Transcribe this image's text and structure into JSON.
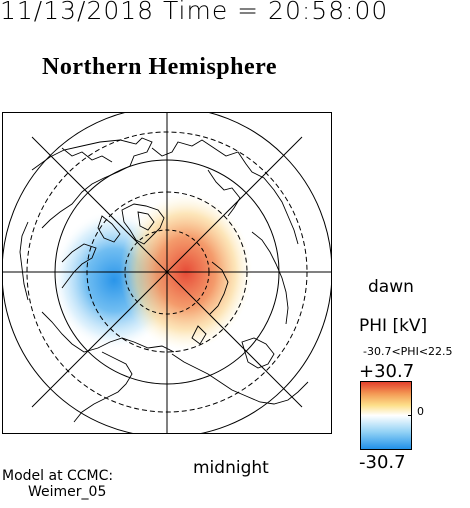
{
  "header": {
    "datetime": "11/13/2018 Time = 20:58:00"
  },
  "map": {
    "title": "Northern Hemisphere",
    "orientation_labels": {
      "right": "dawn",
      "bottom": "midnight"
    },
    "potential_pattern": {
      "positive_cell": "red-center-right",
      "negative_cell": "blue-left"
    },
    "colors": {
      "positive": "#e33d2b",
      "negative": "#1e8fe8",
      "zero": "#ffffff",
      "grid": "#000000"
    }
  },
  "model": {
    "line1": "Model at CCMC:",
    "line2": "Weimer_05"
  },
  "colorbar": {
    "title": "PHI [kV]",
    "range_text": "-30.7<PHI<22.5",
    "max_label": "+30.7",
    "min_label": "-30.7",
    "zero_label": "0",
    "stops": [
      "#1e8fe8",
      "#8fd0f5",
      "#ffffff",
      "#fde08a",
      "#f39a55",
      "#e33d2b"
    ]
  }
}
